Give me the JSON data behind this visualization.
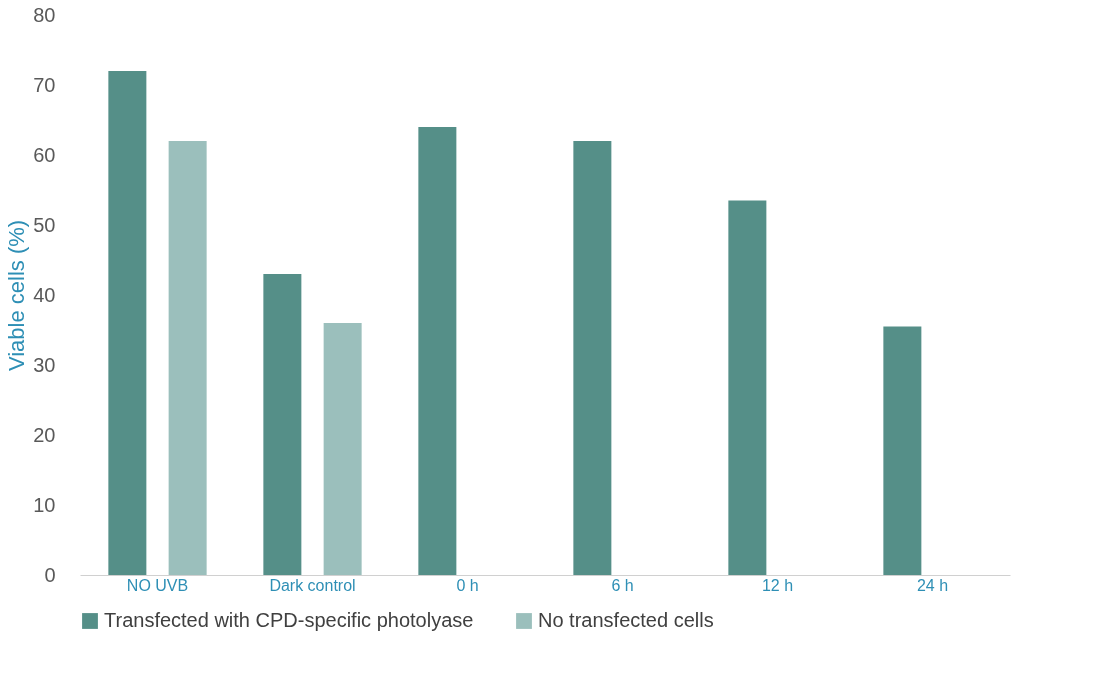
{
  "chart_data": {
    "type": "bar",
    "ylabel": "Viable cells (%)",
    "categories": [
      "NO UVB",
      "Dark control",
      "0 h",
      "6 h",
      "12 h",
      "24 h"
    ],
    "series": [
      {
        "name": "Transfected with CPD-specific photolyase",
        "color": "#558f88",
        "values": [
          72,
          43,
          64,
          62,
          53.5,
          35.5
        ]
      },
      {
        "name": "No transfected cells",
        "color": "#9bbfbc",
        "values": [
          62,
          36,
          null,
          null,
          null,
          null
        ]
      }
    ],
    "ylim": [
      0,
      80
    ],
    "yticks": [
      0,
      10,
      20,
      30,
      40,
      50,
      60,
      70,
      80
    ],
    "grid": false,
    "legend": "bottom"
  }
}
